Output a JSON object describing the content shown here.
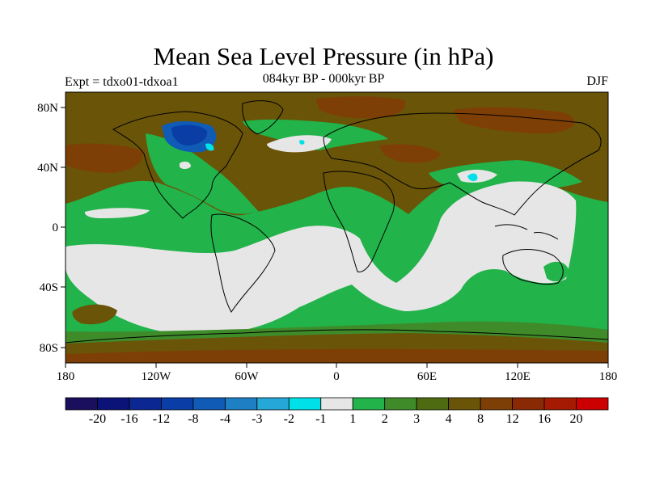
{
  "title": "Mean Sea Level Pressure (in hPa)",
  "subtitle": "084kyr BP - 000kyr BP",
  "experiment": "Expt = tdxo01-tdxoa1",
  "season": "DJF",
  "axes": {
    "lon_ticks": [
      "180",
      "120W",
      "60W",
      "0",
      "60E",
      "120E",
      "180"
    ],
    "lat_ticks": [
      "80N",
      "40N",
      "0",
      "40S",
      "80S"
    ]
  },
  "colorbar": {
    "labels": [
      "-20",
      "-16",
      "-12",
      "-8",
      "-4",
      "-3",
      "-2",
      "-1",
      "1",
      "2",
      "3",
      "4",
      "8",
      "12",
      "16",
      "20"
    ],
    "colors": [
      "#1a0f5e",
      "#0c1378",
      "#0b2791",
      "#0a3ea6",
      "#0f5bb5",
      "#1f7fc4",
      "#25a7d8",
      "#00e0e8",
      "#e6e6e6",
      "#22b34a",
      "#3f8b2a",
      "#4f6b12",
      "#6a5408",
      "#7e3f06",
      "#8a2a04",
      "#a51a02",
      "#cc0000"
    ]
  },
  "colors": {
    "lowest_positive": "#e6e6e6",
    "green": "#22b34a",
    "dark_green": "#3f8b2a",
    "olive": "#6a5408",
    "brown": "#7e3f06",
    "blue": "#0a3ea6",
    "cyan": "#00e0e8"
  }
}
